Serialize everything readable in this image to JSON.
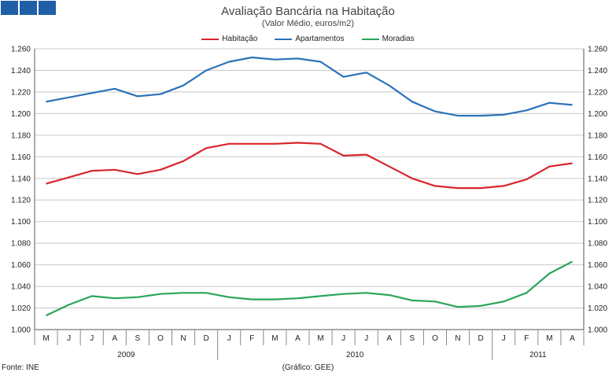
{
  "header": {
    "logo_colors": [
      "#1f5fa8",
      "#1f5fa8",
      "#1f5fa8"
    ]
  },
  "chart_data": {
    "type": "line",
    "title": "Avaliação Bancária na Habitação",
    "subtitle": "(Valor Médio, euros/m2)",
    "xlabel": "",
    "ylabel": "",
    "ylim": [
      1000,
      1260
    ],
    "y_ticks": [
      "1.000",
      "1.020",
      "1.040",
      "1.060",
      "1.080",
      "1.100",
      "1.120",
      "1.140",
      "1.160",
      "1.180",
      "1.200",
      "1.220",
      "1.240",
      "1.260"
    ],
    "categories": [
      "M",
      "J",
      "J",
      "A",
      "S",
      "O",
      "N",
      "D",
      "J",
      "F",
      "M",
      "A",
      "M",
      "J",
      "J",
      "A",
      "S",
      "O",
      "N",
      "D",
      "J",
      "F",
      "M",
      "A"
    ],
    "years": [
      {
        "label": "2009",
        "start": 0,
        "end": 7
      },
      {
        "label": "2010",
        "start": 8,
        "end": 19
      },
      {
        "label": "2011",
        "start": 20,
        "end": 23
      }
    ],
    "series": [
      {
        "name": "Habitação",
        "color": "#d9262b",
        "values": [
          1135,
          1141,
          1147,
          1148,
          1144,
          1148,
          1156,
          1168,
          1172,
          1172,
          1172,
          1173,
          1172,
          1161,
          1162,
          1151,
          1140,
          1133,
          1131,
          1131,
          1133,
          1139,
          1151,
          1154
        ]
      },
      {
        "name": "Apartamentos",
        "color": "#2b72b8",
        "values": [
          1211,
          1215,
          1219,
          1223,
          1216,
          1218,
          1226,
          1240,
          1248,
          1252,
          1250,
          1251,
          1248,
          1234,
          1238,
          1226,
          1211,
          1202,
          1198,
          1198,
          1199,
          1203,
          1210,
          1208
        ]
      },
      {
        "name": "Moradias",
        "color": "#2aa55a",
        "values": [
          1013,
          1023,
          1031,
          1029,
          1030,
          1033,
          1034,
          1034,
          1030,
          1028,
          1028,
          1029,
          1031,
          1033,
          1034,
          1032,
          1027,
          1026,
          1021,
          1022,
          1026,
          1034,
          1052,
          1063
        ]
      }
    ],
    "grid": true,
    "legend_position": "top-center"
  },
  "footer": {
    "source": "Fonte: INE",
    "credit": "(Gráfico: GEE)"
  }
}
